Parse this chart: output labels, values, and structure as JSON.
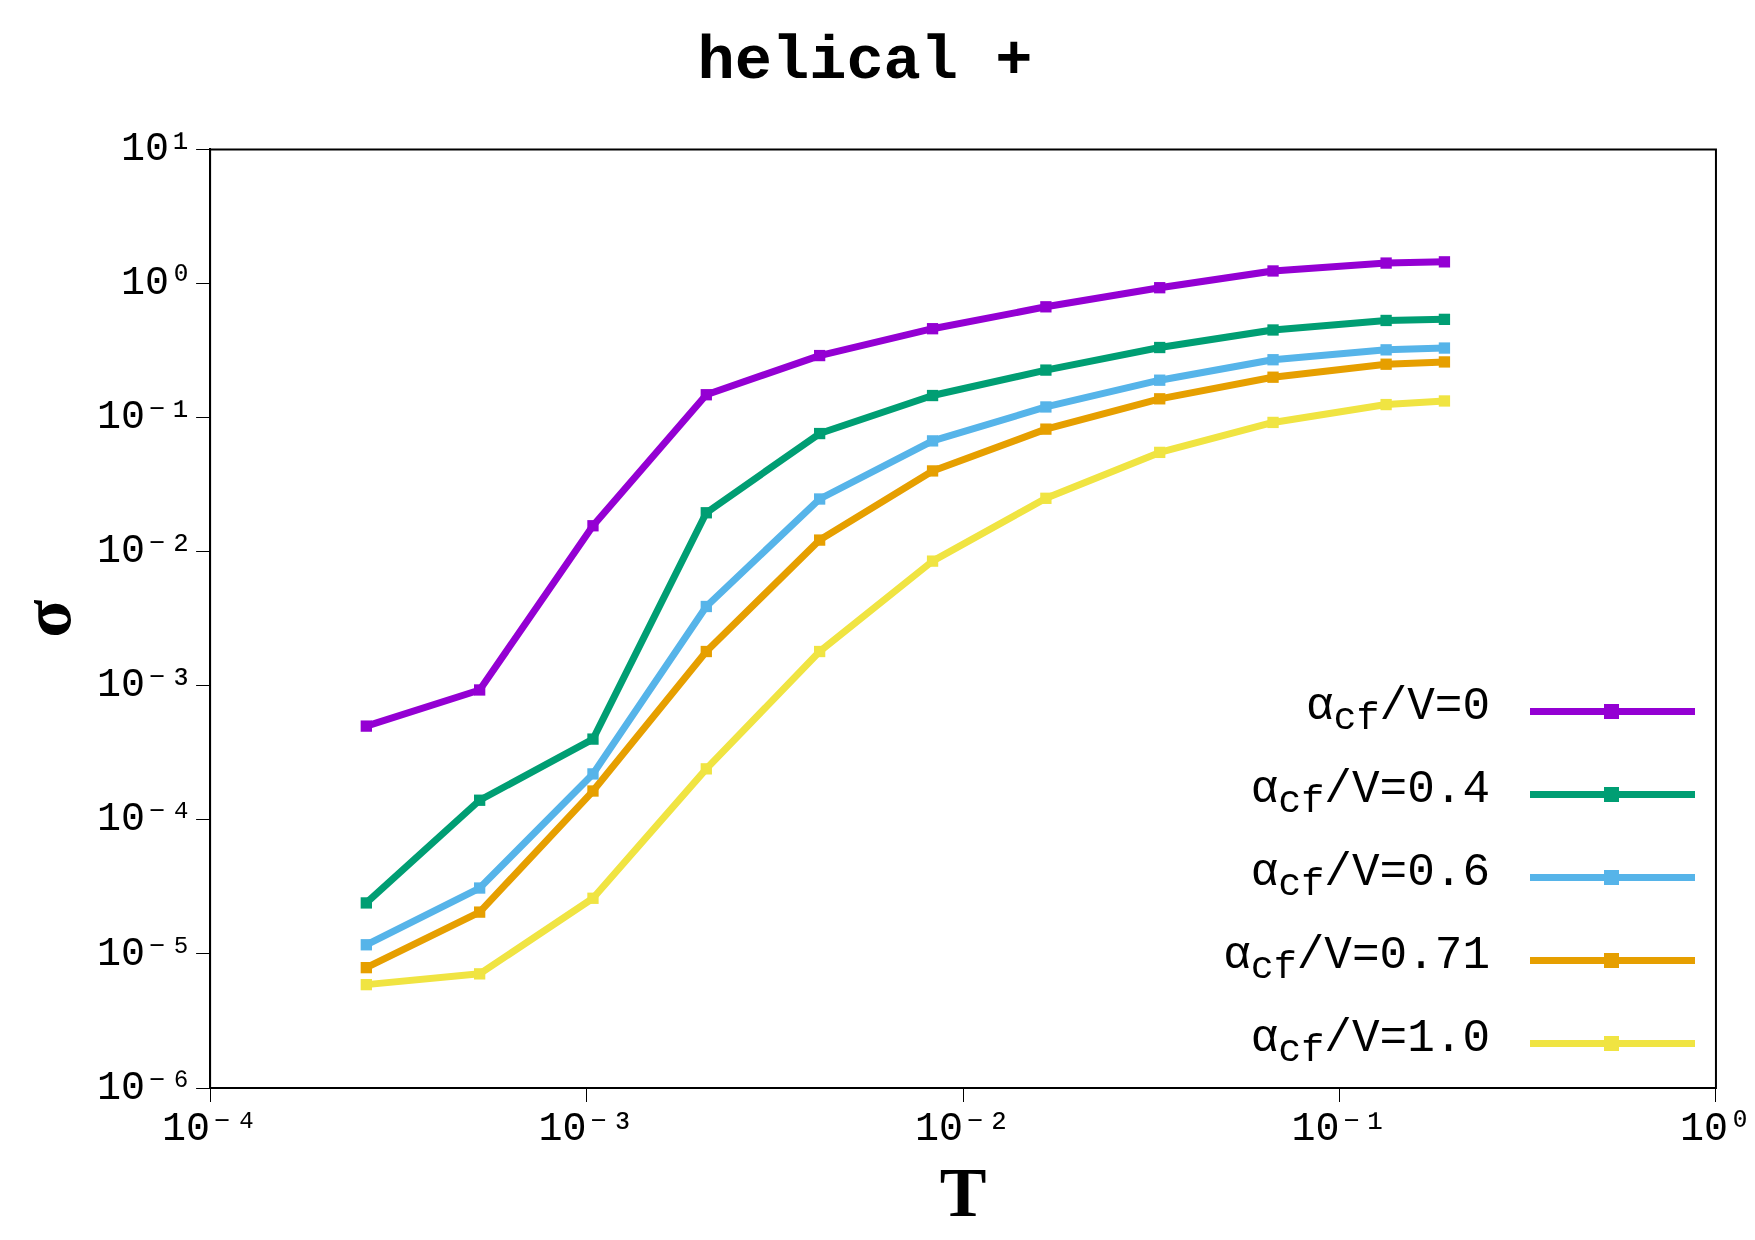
{
  "chart_data": {
    "type": "line",
    "title": "helical +",
    "xlabel": "T",
    "ylabel": "σ",
    "log": "xy",
    "legend": "bottom right",
    "marker": "square",
    "x": [
      0.00026,
      0.00052,
      0.00104,
      0.00208,
      0.00416,
      0.0083,
      0.0166,
      0.0333,
      0.0666,
      0.133,
      0.19
    ],
    "xlim": [
      0.0001,
      1
    ],
    "xticks": [
      {
        "value": 0.0001,
        "label": "10⁻⁴"
      },
      {
        "value": 0.001,
        "label": "10⁻³"
      },
      {
        "value": 0.01,
        "label": "10⁻²"
      },
      {
        "value": 0.1,
        "label": "10⁻¹"
      },
      {
        "value": 1,
        "label": "10⁰"
      }
    ],
    "ylim": [
      1e-06,
      10
    ],
    "yticks": [
      {
        "value": 1e-06,
        "label": "10⁻⁶"
      },
      {
        "value": 1e-05,
        "label": "10⁻⁵"
      },
      {
        "value": 0.0001,
        "label": "10⁻⁴"
      },
      {
        "value": 0.001,
        "label": "10⁻³"
      },
      {
        "value": 0.01,
        "label": "10⁻²"
      },
      {
        "value": 0.1,
        "label": "10⁻¹"
      },
      {
        "value": 1,
        "label": "10⁰"
      },
      {
        "value": 10,
        "label": "10¹"
      }
    ],
    "series": [
      {
        "name": "α$_{cf}$/V=0",
        "color": "#9400d3",
        "values": [
          0.0005,
          0.00093,
          0.0156,
          0.148,
          0.29,
          0.46,
          0.67,
          0.93,
          1.24,
          1.42,
          1.45
        ]
      },
      {
        "name": "α$_{cf}$/V=0.4",
        "color": "#009e73",
        "values": [
          2.4e-05,
          0.00014,
          0.0004,
          0.0195,
          0.076,
          0.146,
          0.226,
          0.333,
          0.45,
          0.53,
          0.54
        ]
      },
      {
        "name": "α$_{cf}$/V=0.6",
        "color": "#56b4e9",
        "values": [
          1.17e-05,
          3.1e-05,
          0.00022,
          0.0039,
          0.0247,
          0.067,
          0.12,
          0.19,
          0.27,
          0.32,
          0.33
        ]
      },
      {
        "name": "α$_{cf}$/V=0.71",
        "color": "#e69f00",
        "values": [
          7.9e-06,
          2.05e-05,
          0.000164,
          0.0018,
          0.0122,
          0.04,
          0.082,
          0.138,
          0.2,
          0.25,
          0.26
        ]
      },
      {
        "name": "α$_{cf}$/V=1.0",
        "color": "#f0e442",
        "values": [
          5.9e-06,
          7.1e-06,
          2.6e-05,
          0.00024,
          0.0018,
          0.0085,
          0.025,
          0.055,
          0.092,
          0.125,
          0.133
        ]
      }
    ]
  }
}
